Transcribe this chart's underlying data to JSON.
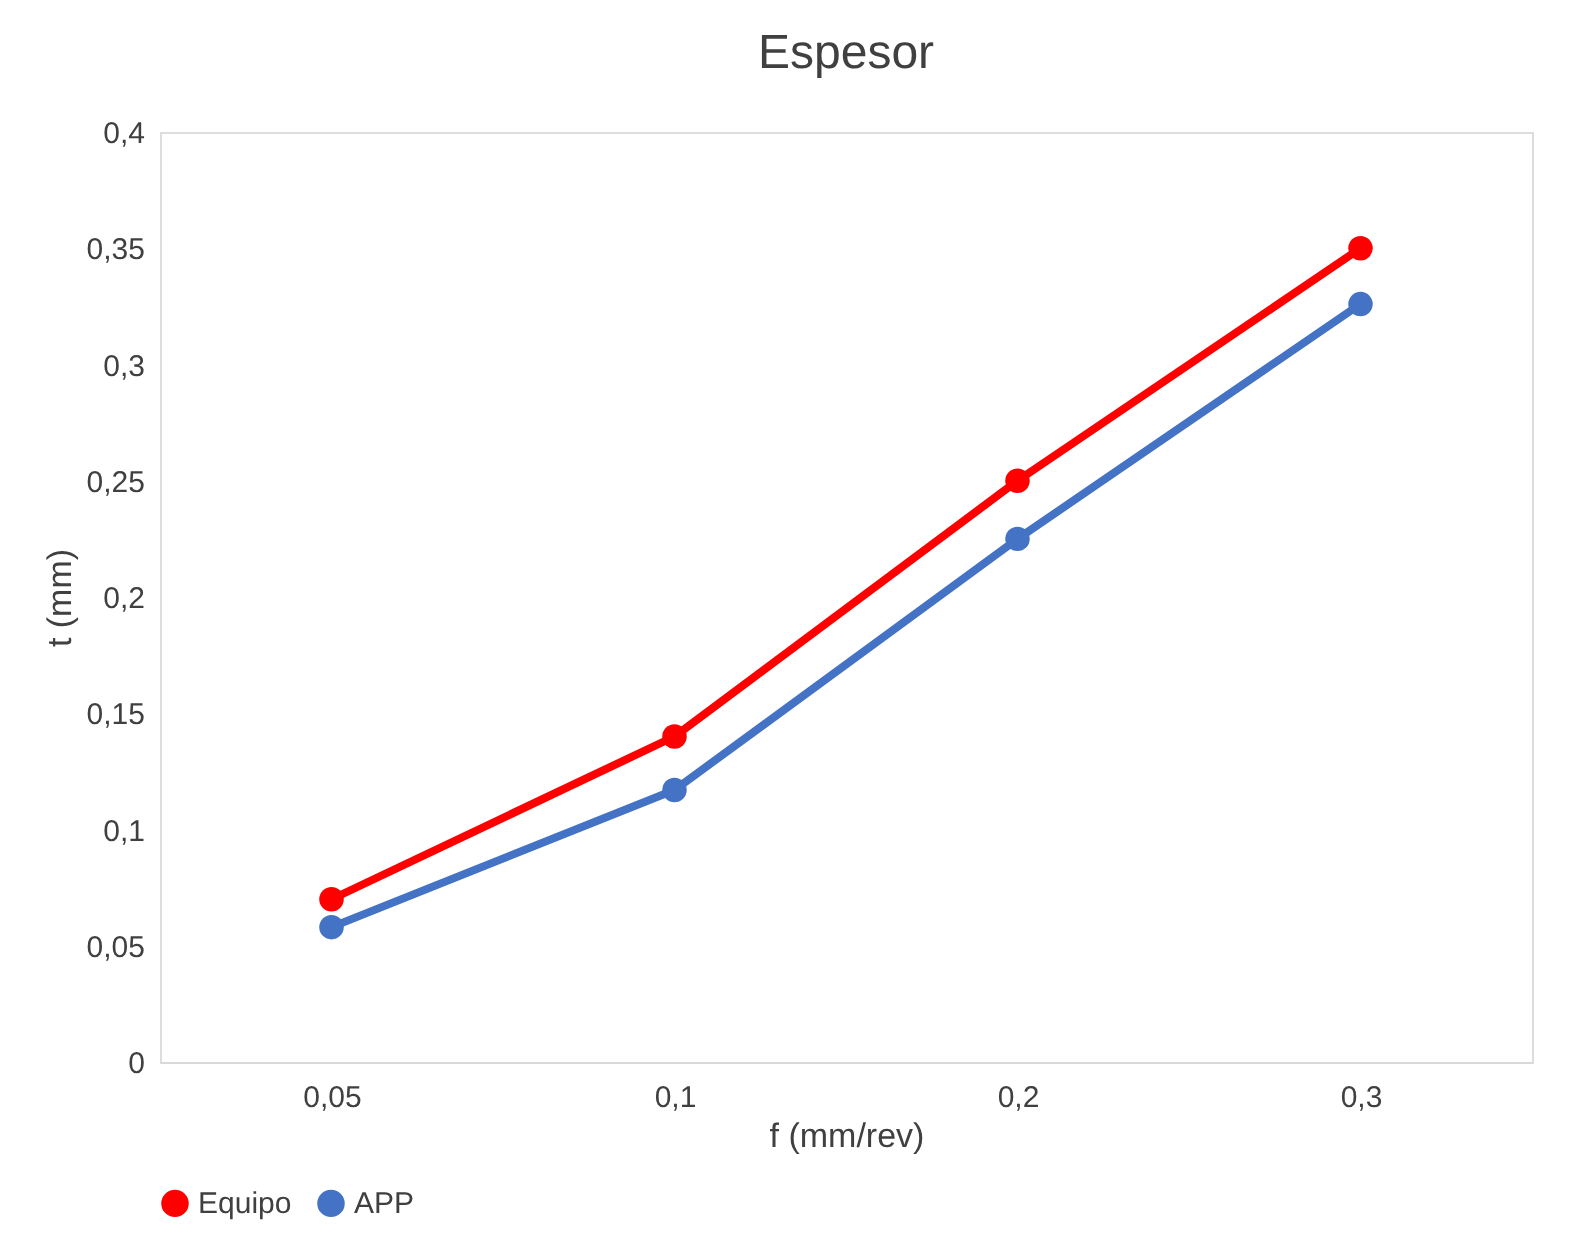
{
  "chart_data": {
    "type": "line",
    "title": "Espesor",
    "xlabel": "f (mm/rev)",
    "ylabel": "t (mm)",
    "categories": [
      "0,05",
      "0,1",
      "0,2",
      "0,3"
    ],
    "series": [
      {
        "name": "Equipo",
        "color": "#ff0000",
        "values": [
          0.07,
          0.14,
          0.25,
          0.35
        ]
      },
      {
        "name": "APP",
        "color": "#4472c4",
        "values": [
          0.058,
          0.117,
          0.225,
          0.326
        ]
      }
    ],
    "ylim": [
      0,
      0.4
    ],
    "yticks": [
      0,
      {
        "value": 0.05,
        "label": "0,05"
      },
      {
        "value": 0.1,
        "label": "0,1"
      },
      {
        "value": 0.15,
        "label": "0,15"
      },
      {
        "value": 0.2,
        "label": "0,2"
      },
      {
        "value": 0.25,
        "label": "0,25"
      },
      {
        "value": 0.3,
        "label": "0,3"
      },
      {
        "value": 0.35,
        "label": "0,35"
      },
      {
        "value": 0.4,
        "label": "0,4"
      }
    ],
    "grid": false,
    "legend": "bottom",
    "marker": "circle",
    "line_style": "solid"
  }
}
